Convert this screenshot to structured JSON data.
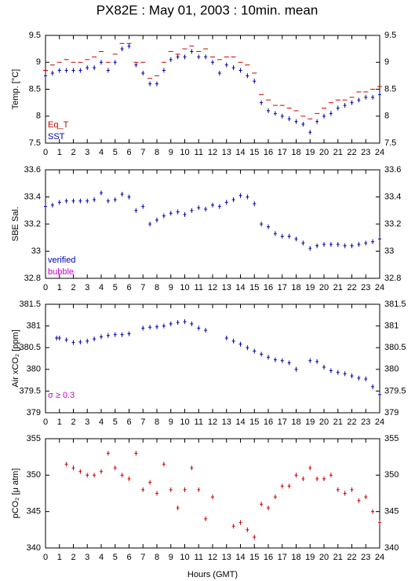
{
  "title": "PX82E : May 01, 2003 : 10min. mean",
  "x_label": "Hours (GMT)",
  "chart_data": [
    {
      "type": "scatter",
      "ylabel": "Temp. [°C]",
      "xlim": [
        0,
        24
      ],
      "xticks": [
        0,
        1,
        2,
        3,
        4,
        5,
        6,
        7,
        8,
        9,
        10,
        11,
        12,
        13,
        14,
        15,
        16,
        17,
        18,
        19,
        20,
        21,
        22,
        23,
        24
      ],
      "ylim": [
        7.5,
        9.5
      ],
      "yticks": [
        7.5,
        8,
        8.5,
        9,
        9.5
      ],
      "legend": "lower left",
      "series": [
        {
          "name": "Eq_T",
          "color": "#cc0000",
          "marker": "dash",
          "x": [
            0,
            0.5,
            1,
            1.5,
            2,
            2.5,
            3,
            3.5,
            4,
            4.5,
            5,
            5.5,
            6,
            6.5,
            7,
            7.5,
            8,
            8.5,
            9,
            9.5,
            10,
            10.5,
            11,
            11.5,
            12,
            12.5,
            13,
            13.5,
            14,
            14.5,
            15,
            15.5,
            16,
            16.5,
            17,
            17.5,
            18,
            18.5,
            19,
            19.5,
            20,
            20.5,
            21,
            21.5,
            22,
            22.5,
            23,
            23.5,
            24
          ],
          "values": [
            8.85,
            8.95,
            9.0,
            9.05,
            9.0,
            9.0,
            9.05,
            9.1,
            9.2,
            9.0,
            9.15,
            9.35,
            9.35,
            9.0,
            9.0,
            8.7,
            8.75,
            9.0,
            9.2,
            9.15,
            9.25,
            9.3,
            9.2,
            9.25,
            9.1,
            9.05,
            9.1,
            9.1,
            9.0,
            8.95,
            8.8,
            8.4,
            8.3,
            8.2,
            8.2,
            8.15,
            8.1,
            8.0,
            7.95,
            8.05,
            8.15,
            8.25,
            8.3,
            8.3,
            8.35,
            8.45,
            8.45,
            8.5,
            8.55
          ]
        },
        {
          "name": "SST",
          "color": "#0000aa",
          "marker": "plus",
          "x": [
            0,
            0.5,
            1,
            1.5,
            2,
            2.5,
            3,
            3.5,
            4,
            4.5,
            5,
            5.5,
            6,
            6.5,
            7,
            7.5,
            8,
            8.5,
            9,
            9.5,
            10,
            10.5,
            11,
            11.5,
            12,
            12.5,
            13,
            13.5,
            14,
            14.5,
            15,
            15.5,
            16,
            16.5,
            17,
            17.5,
            18,
            18.5,
            19,
            19.5,
            20,
            20.5,
            21,
            21.5,
            22,
            22.5,
            23,
            23.5,
            24
          ],
          "values": [
            8.75,
            8.8,
            8.85,
            8.85,
            8.85,
            8.85,
            8.9,
            8.9,
            9.0,
            8.85,
            9.0,
            9.25,
            9.3,
            8.95,
            8.8,
            8.6,
            8.6,
            8.85,
            9.05,
            9.1,
            9.1,
            9.2,
            9.1,
            9.1,
            9.0,
            8.8,
            8.95,
            8.9,
            8.85,
            8.75,
            8.65,
            8.25,
            8.1,
            8.05,
            8.0,
            7.95,
            7.9,
            7.85,
            7.7,
            7.9,
            8.0,
            8.05,
            8.15,
            8.2,
            8.25,
            8.3,
            8.35,
            8.35,
            8.4
          ]
        }
      ]
    },
    {
      "type": "scatter",
      "ylabel": "SBE Sal.",
      "xlim": [
        0,
        24
      ],
      "xticks": [
        0,
        1,
        2,
        3,
        4,
        5,
        6,
        7,
        8,
        9,
        10,
        11,
        12,
        13,
        14,
        15,
        16,
        17,
        18,
        19,
        20,
        21,
        22,
        23,
        24
      ],
      "ylim": [
        32.8,
        33.6
      ],
      "yticks": [
        32.8,
        33,
        33.2,
        33.4,
        33.6
      ],
      "legend": "lower left",
      "series": [
        {
          "name": "verified",
          "color": "#0000aa",
          "marker": "plus",
          "x": [
            0,
            0.5,
            1,
            1.5,
            2,
            2.5,
            3,
            3.5,
            4,
            4.5,
            5,
            5.5,
            6,
            6.5,
            7,
            7.5,
            8,
            8.5,
            9,
            9.5,
            10,
            10.5,
            11,
            11.5,
            12,
            12.5,
            13,
            13.5,
            14,
            14.5,
            15,
            15.5,
            16,
            16.5,
            17,
            17.5,
            18,
            18.5,
            19,
            19.5,
            20,
            20.5,
            21,
            21.5,
            22,
            22.5,
            23,
            23.5,
            24
          ],
          "values": [
            33.33,
            33.34,
            33.36,
            33.37,
            33.37,
            33.37,
            33.37,
            33.38,
            33.43,
            33.37,
            33.38,
            33.42,
            33.4,
            33.3,
            33.33,
            33.2,
            33.23,
            33.26,
            33.28,
            33.29,
            33.27,
            33.3,
            33.32,
            33.31,
            33.34,
            33.33,
            33.36,
            33.38,
            33.41,
            33.4,
            33.35,
            33.2,
            33.18,
            33.13,
            33.11,
            33.11,
            33.09,
            33.06,
            33.02,
            33.04,
            33.05,
            33.05,
            33.05,
            33.04,
            33.04,
            33.05,
            33.06,
            33.07,
            33.09
          ]
        },
        {
          "name": "bubble",
          "color": "#cc00cc",
          "marker": "plus",
          "x": [],
          "values": []
        }
      ]
    },
    {
      "type": "scatter",
      "ylabel": "Air xCO₂ [ppm]",
      "xlim": [
        0,
        24
      ],
      "xticks": [
        0,
        1,
        2,
        3,
        4,
        5,
        6,
        7,
        8,
        9,
        10,
        11,
        12,
        13,
        14,
        15,
        16,
        17,
        18,
        19,
        20,
        21,
        22,
        23,
        24
      ],
      "ylim": [
        379,
        381.5
      ],
      "yticks": [
        379,
        379.5,
        380,
        380.5,
        381,
        381.5
      ],
      "annotation": "σ ≥ 0.3",
      "annotation_color": "#cc00cc",
      "series": [
        {
          "color": "#0000aa",
          "marker": "plus",
          "x": [
            0.8,
            1,
            1.5,
            2,
            2.5,
            3,
            3.5,
            4,
            4.5,
            5,
            5.5,
            6,
            7,
            7.5,
            8,
            8.5,
            9,
            9.5,
            10,
            10.5,
            11,
            11.5,
            13,
            13.5,
            14,
            14.5,
            15,
            15.5,
            16,
            16.5,
            17,
            17.5,
            18,
            19,
            19.5,
            20,
            20.5,
            21,
            21.5,
            22,
            22.5,
            23,
            23.5,
            24
          ],
          "values": [
            380.72,
            380.72,
            380.68,
            380.62,
            380.63,
            380.65,
            380.7,
            380.75,
            380.78,
            380.8,
            380.8,
            380.82,
            380.95,
            380.97,
            380.98,
            381.0,
            381.05,
            381.08,
            381.1,
            381.05,
            380.95,
            380.9,
            380.72,
            380.65,
            380.58,
            380.5,
            380.42,
            380.35,
            380.28,
            380.22,
            380.2,
            380.15,
            380.0,
            380.2,
            380.18,
            380.05,
            379.97,
            379.93,
            379.9,
            379.85,
            379.8,
            379.78,
            379.6,
            379.42
          ]
        }
      ]
    },
    {
      "type": "scatter",
      "ylabel": "pCO₂ [μ atm]",
      "xlim": [
        0,
        24
      ],
      "xticks": [
        0,
        1,
        2,
        3,
        4,
        5,
        6,
        7,
        8,
        9,
        10,
        11,
        12,
        13,
        14,
        15,
        16,
        17,
        18,
        19,
        20,
        21,
        22,
        23,
        24
      ],
      "ylim": [
        340,
        355
      ],
      "yticks": [
        340,
        345,
        350,
        355
      ],
      "series": [
        {
          "color": "#cc0000",
          "marker": "plus",
          "x": [
            1.5,
            2,
            2.5,
            3,
            3.5,
            4,
            4.5,
            5,
            5.5,
            6,
            6.5,
            7,
            7.5,
            8,
            8.5,
            9,
            9.5,
            10,
            10.5,
            11,
            11.5,
            12,
            13.5,
            14,
            14.5,
            15,
            15.5,
            16,
            16.5,
            17,
            17.5,
            18,
            18.5,
            19,
            19.5,
            20,
            20.5,
            21,
            21.5,
            22,
            22.5,
            23,
            23.5,
            24
          ],
          "values": [
            351.5,
            351,
            350.5,
            350,
            350,
            350.5,
            353,
            351,
            350,
            349.5,
            353,
            348,
            349,
            347.5,
            351.5,
            348,
            345.5,
            348,
            351,
            348,
            344,
            347,
            343,
            343.5,
            342.5,
            341.5,
            346,
            345.5,
            347,
            348.5,
            348.5,
            350,
            349.5,
            351,
            349.5,
            349.5,
            350,
            348,
            347.5,
            348,
            346.5,
            347,
            345,
            343.5
          ]
        }
      ]
    }
  ]
}
